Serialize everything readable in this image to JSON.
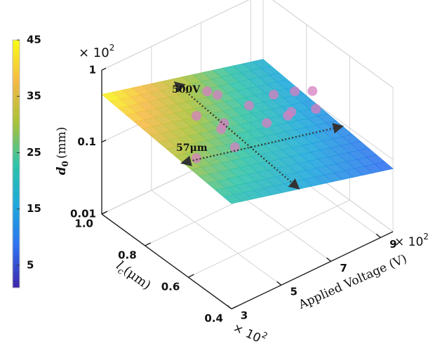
{
  "chart_data": {
    "type": "surface3d",
    "xlabel": "Applied Voltage (V)",
    "ylabel": {
      "base": "l",
      "sub": "c",
      "unit": "(μm)"
    },
    "zlabel": {
      "base": "d",
      "sub": "0",
      "unit": "(mm)"
    },
    "xlim": [
      3,
      9.5
    ],
    "xticks": [
      3,
      5,
      7,
      9
    ],
    "x_multiplier": {
      "base": "× 10",
      "exp": "2"
    },
    "ylim": [
      0.4,
      1.0
    ],
    "yticks": [
      0.4,
      0.6,
      0.8,
      {
        "value": 1.0,
        "label": "1.0"
      }
    ],
    "y_multiplier": {
      "base": "× 10",
      "exp": "2"
    },
    "zlim": [
      0.01,
      1
    ],
    "zscale": "log",
    "zticks": [
      0.01,
      0.1,
      1
    ],
    "z_multiplier": {
      "base": "× 10",
      "exp": "2"
    },
    "grid": true,
    "colorbar": {
      "clim": [
        1,
        45
      ],
      "ticks": [
        5,
        15,
        25,
        35,
        45
      ],
      "colormap": [
        "#3e26a8",
        "#2f6ff0",
        "#1ea8dc",
        "#2fc3a8",
        "#a8c23a",
        "#f5b945",
        "#f9fb15"
      ]
    },
    "surface": {
      "x": [
        3,
        9.5
      ],
      "y": [
        1.0,
        0.4
      ],
      "z": [
        [
          0.46,
          0.12
        ],
        [
          0.29,
          0.075
        ]
      ],
      "c": [
        [
          45,
          17
        ],
        [
          22,
          8
        ]
      ]
    },
    "points": {
      "color": "#d77fc0",
      "x": [
        5.5,
        5.92,
        5.07,
        6.07,
        6.62,
        5.07,
        7.19,
        8.18,
        8.75,
        8.0,
        8.14,
        7.29,
        6.16,
        7.15,
        6.18
      ],
      "y": [
        0.8,
        0.8,
        0.8,
        0.8,
        0.8,
        0.8,
        0.8,
        0.8,
        0.8,
        0.6,
        0.6,
        0.6,
        0.6,
        0.6,
        0.8
      ],
      "z": [
        0.54,
        0.41,
        0.29,
        0.13,
        0.059,
        0.075,
        0.18,
        0.175,
        0.072,
        0.58,
        0.31,
        0.75,
        0.42,
        0.41,
        0.15
      ]
    },
    "annotations": [
      "500V",
      "57μm"
    ]
  }
}
